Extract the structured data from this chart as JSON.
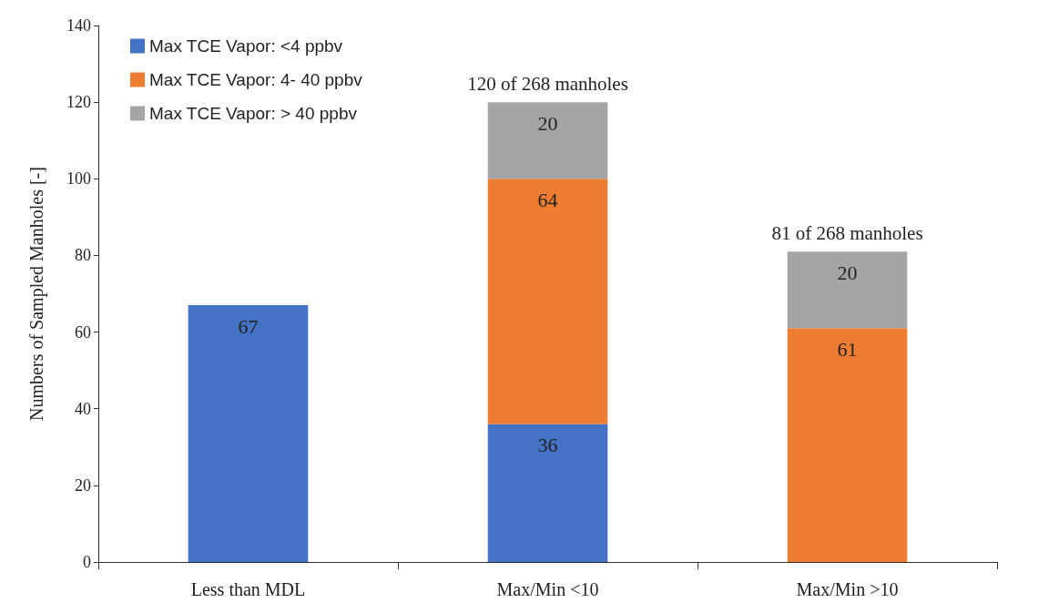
{
  "chart_data": {
    "type": "bar",
    "stacked": true,
    "ylabel": "Numbers of Sampled Manholes [-]",
    "categories": [
      "Less than MDL",
      "Max/Min <10",
      "Max/Min >10"
    ],
    "series": [
      {
        "name": "Max TCE Vapor: <4 ppbv",
        "color": "#4472c4",
        "values": [
          67,
          36,
          null
        ]
      },
      {
        "name": "Max TCE Vapor: 4- 40 ppbv",
        "color": "#ed7d31",
        "values": [
          null,
          64,
          61
        ]
      },
      {
        "name": "Max TCE Vapor: > 40 ppbv",
        "color": "#a5a5a5",
        "values": [
          null,
          20,
          20
        ]
      }
    ],
    "totals": [
      null,
      "120 of 268 manholes",
      "81 of 268 manholes"
    ],
    "ylim": [
      0,
      140
    ],
    "yticks": [
      0,
      20,
      40,
      60,
      80,
      100,
      120,
      140
    ],
    "data_labels": true,
    "grid": false,
    "legend": "top left"
  }
}
